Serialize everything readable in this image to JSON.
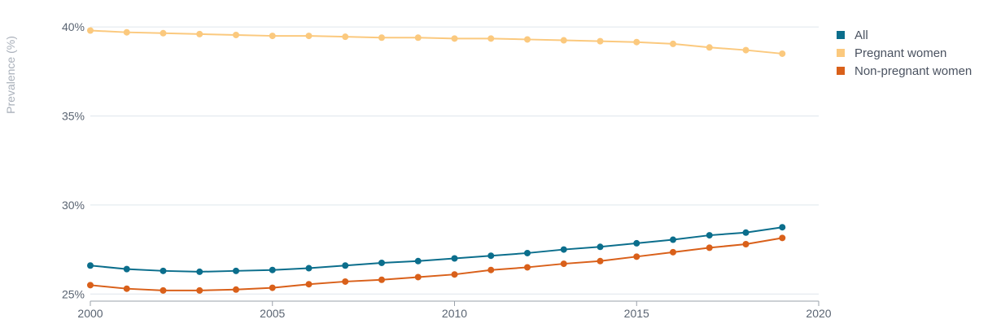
{
  "chart_data": {
    "type": "line",
    "title": "",
    "xlabel": "",
    "ylabel": "Prevalence (%)",
    "x": [
      2000,
      2001,
      2002,
      2003,
      2004,
      2005,
      2006,
      2007,
      2008,
      2009,
      2010,
      2011,
      2012,
      2013,
      2014,
      2015,
      2016,
      2017,
      2018,
      2019
    ],
    "xlim": [
      2000,
      2020
    ],
    "ylim": [
      24.6,
      40.6
    ],
    "x_ticks": [
      2000,
      2005,
      2010,
      2015,
      2020
    ],
    "x_tick_labels": [
      "2000",
      "2005",
      "2010",
      "2015",
      "2020"
    ],
    "y_ticks": [
      25,
      30,
      35,
      40
    ],
    "y_tick_labels": [
      "25%",
      "30%",
      "35%",
      "40%"
    ],
    "grid": true,
    "legend_position": "top-right",
    "series": [
      {
        "name": "All",
        "color": "#0b6e8c",
        "values": [
          26.6,
          26.4,
          26.3,
          26.25,
          26.3,
          26.35,
          26.45,
          26.6,
          26.75,
          26.85,
          27.0,
          27.15,
          27.3,
          27.5,
          27.65,
          27.85,
          28.05,
          28.3,
          28.45,
          28.75
        ]
      },
      {
        "name": "Pregnant women",
        "color": "#fbc97e",
        "values": [
          39.8,
          39.7,
          39.65,
          39.6,
          39.55,
          39.5,
          39.5,
          39.45,
          39.4,
          39.4,
          39.35,
          39.35,
          39.3,
          39.25,
          39.2,
          39.15,
          39.05,
          38.85,
          38.7,
          38.5
        ]
      },
      {
        "name": "Non-pregnant women",
        "color": "#d9601a",
        "values": [
          25.5,
          25.3,
          25.2,
          25.2,
          25.25,
          25.35,
          25.55,
          25.7,
          25.8,
          25.95,
          26.1,
          26.35,
          26.5,
          26.7,
          26.85,
          27.1,
          27.35,
          27.6,
          27.8,
          28.15
        ]
      }
    ]
  }
}
